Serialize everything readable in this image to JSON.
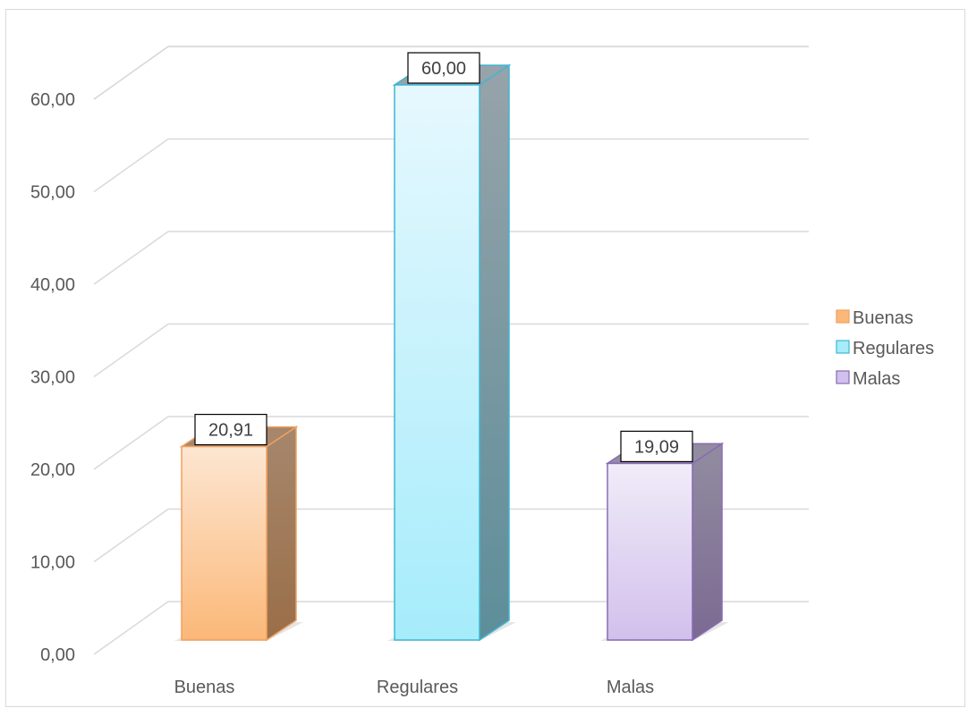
{
  "chart_data": {
    "type": "bar",
    "three_d": true,
    "categories": [
      "Buenas",
      "Regulares",
      "Malas"
    ],
    "values": [
      20.91,
      60.0,
      19.09
    ],
    "value_labels": [
      "20,91",
      "60,00",
      "19,09"
    ],
    "yticks": [
      "0,00",
      "10,00",
      "20,00",
      "30,00",
      "40,00",
      "50,00",
      "60,00"
    ],
    "ylim": [
      0,
      60
    ],
    "title": "",
    "xlabel": "",
    "ylabel": "",
    "grid": true,
    "legend": {
      "position": "right",
      "entries": [
        "Buenas",
        "Regulares",
        "Malas"
      ]
    },
    "colors": {
      "Buenas": {
        "top": "#fde6d2",
        "bottom": "#fbb878",
        "border": "#f0a060",
        "side": "#a6876c",
        "side_dark": "#9a6e48"
      },
      "Regulares": {
        "top": "#e6f8fe",
        "bottom": "#a6ecfb",
        "border": "#3fb6d2",
        "side": "#97a3aa",
        "side_dark": "#5d8e9a"
      },
      "Malas": {
        "top": "#f0ecf8",
        "bottom": "#d2c0ec",
        "border": "#8a6ab4",
        "side": "#928ca0",
        "side_dark": "#7b6a92"
      }
    }
  }
}
